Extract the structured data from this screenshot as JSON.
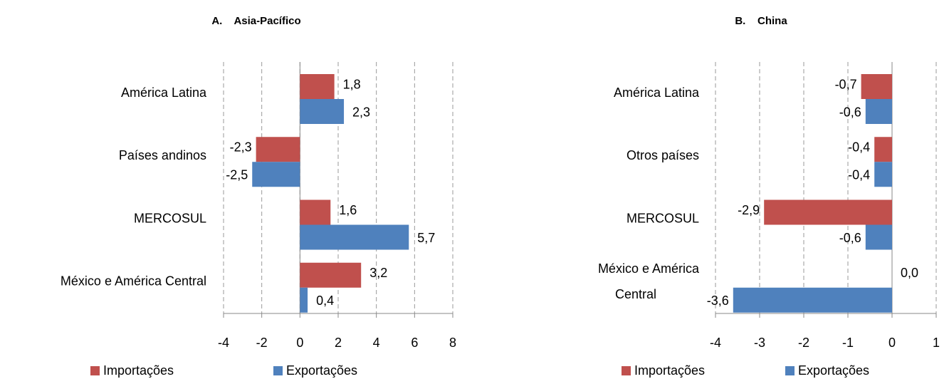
{
  "chart_data": [
    {
      "type": "bar",
      "orientation": "horizontal",
      "title": "A.    Asia-Pacífico",
      "categories": [
        "América Latina",
        "Países andinos",
        "MERCOSUL",
        "México e América Central"
      ],
      "series": [
        {
          "name": "Importações",
          "color": "#c0504d",
          "values": [
            1.8,
            -2.3,
            1.6,
            3.2
          ],
          "value_labels": [
            "1,8",
            "-2,3",
            "1,6",
            "3,2"
          ]
        },
        {
          "name": "Exportações",
          "color": "#4f81bd",
          "values": [
            2.3,
            -2.5,
            5.7,
            0.4
          ],
          "value_labels": [
            "2,3",
            "-2,5",
            "5,7",
            "0,4"
          ]
        }
      ],
      "xlim": [
        -4,
        8
      ],
      "xticks": [
        -4,
        -2,
        0,
        2,
        4,
        6,
        8
      ],
      "grid": true,
      "legend": "bottom"
    },
    {
      "type": "bar",
      "orientation": "horizontal",
      "title": "B.    China",
      "categories": [
        "América Latina",
        "Otros países",
        "MERCOSUL",
        "México e América Central"
      ],
      "series": [
        {
          "name": "Importações",
          "color": "#c0504d",
          "values": [
            -0.7,
            -0.4,
            -2.9,
            0.0
          ],
          "value_labels": [
            "-0,7",
            "-0,4",
            "-2,9",
            "0,0"
          ]
        },
        {
          "name": "Exportações",
          "color": "#4f81bd",
          "values": [
            -0.6,
            -0.4,
            -0.6,
            -3.6
          ],
          "value_labels": [
            "-0,6",
            "-0,4",
            "-0,6",
            "-3,6"
          ]
        }
      ],
      "xlim": [
        -4,
        1
      ],
      "xticks": [
        -4,
        -3,
        -2,
        -1,
        0,
        1
      ],
      "grid": true,
      "legend": "bottom"
    }
  ]
}
